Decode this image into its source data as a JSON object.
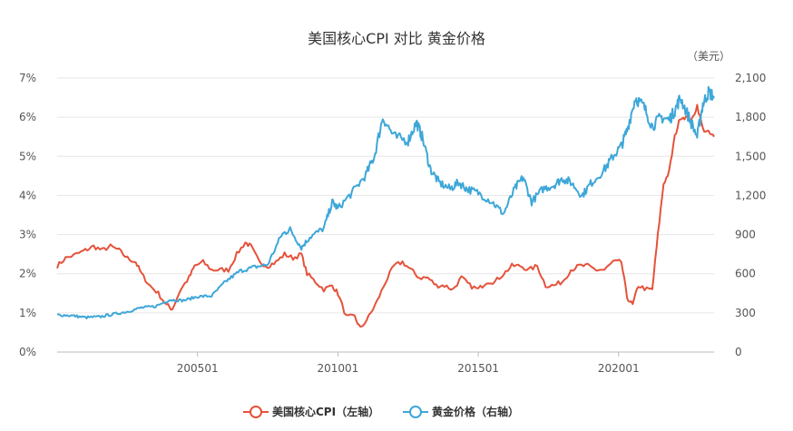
{
  "chart_data": {
    "type": "line",
    "title": "美国核心CPI 对比 黄金价格",
    "right_unit_label": "（美元）",
    "x_tick_labels": [
      "200501",
      "201001",
      "201501",
      "202001"
    ],
    "x_tick_dates": [
      2005.0,
      2010.0,
      2015.0,
      2020.0
    ],
    "xlim": [
      2000.0,
      2023.4
    ],
    "y_left": {
      "ticks": [
        "0%",
        "1%",
        "2%",
        "3%",
        "4%",
        "5%",
        "6%",
        "7%"
      ],
      "ylim": [
        0,
        7
      ]
    },
    "y_right": {
      "ticks": [
        "0",
        "300",
        "600",
        "900",
        "1,200",
        "1,500",
        "1,800",
        "2,100"
      ],
      "ylim": [
        0,
        2100
      ]
    },
    "grid": "horizontal",
    "legend_position": "bottom",
    "series": [
      {
        "name": "美国核心CPI（左轴）",
        "axis": "left",
        "color": "#e5523b",
        "points": [
          [
            2000.0,
            2.2
          ],
          [
            2000.3,
            2.4
          ],
          [
            2000.7,
            2.5
          ],
          [
            2001.0,
            2.6
          ],
          [
            2001.3,
            2.7
          ],
          [
            2001.6,
            2.6
          ],
          [
            2001.9,
            2.7
          ],
          [
            2002.2,
            2.6
          ],
          [
            2002.5,
            2.4
          ],
          [
            2002.8,
            2.3
          ],
          [
            2003.0,
            2.0
          ],
          [
            2003.3,
            1.7
          ],
          [
            2003.6,
            1.5
          ],
          [
            2003.9,
            1.2
          ],
          [
            2004.1,
            1.1
          ],
          [
            2004.4,
            1.6
          ],
          [
            2004.7,
            1.9
          ],
          [
            2004.9,
            2.2
          ],
          [
            2005.2,
            2.3
          ],
          [
            2005.5,
            2.1
          ],
          [
            2005.8,
            2.1
          ],
          [
            2006.1,
            2.1
          ],
          [
            2006.4,
            2.5
          ],
          [
            2006.7,
            2.8
          ],
          [
            2006.9,
            2.7
          ],
          [
            2007.2,
            2.3
          ],
          [
            2007.5,
            2.2
          ],
          [
            2007.8,
            2.3
          ],
          [
            2008.1,
            2.5
          ],
          [
            2008.4,
            2.4
          ],
          [
            2008.7,
            2.5
          ],
          [
            2008.9,
            2.0
          ],
          [
            2009.2,
            1.8
          ],
          [
            2009.5,
            1.6
          ],
          [
            2009.8,
            1.7
          ],
          [
            2010.0,
            1.5
          ],
          [
            2010.3,
            0.9
          ],
          [
            2010.6,
            0.9
          ],
          [
            2010.8,
            0.6
          ],
          [
            2011.1,
            0.9
          ],
          [
            2011.4,
            1.3
          ],
          [
            2011.7,
            1.8
          ],
          [
            2012.0,
            2.2
          ],
          [
            2012.3,
            2.3
          ],
          [
            2012.6,
            2.1
          ],
          [
            2012.9,
            1.9
          ],
          [
            2013.2,
            1.9
          ],
          [
            2013.5,
            1.7
          ],
          [
            2013.8,
            1.7
          ],
          [
            2014.1,
            1.6
          ],
          [
            2014.4,
            1.9
          ],
          [
            2014.7,
            1.7
          ],
          [
            2015.0,
            1.6
          ],
          [
            2015.3,
            1.8
          ],
          [
            2015.6,
            1.8
          ],
          [
            2015.9,
            2.0
          ],
          [
            2016.2,
            2.2
          ],
          [
            2016.5,
            2.2
          ],
          [
            2016.8,
            2.1
          ],
          [
            2017.1,
            2.2
          ],
          [
            2017.4,
            1.7
          ],
          [
            2017.7,
            1.7
          ],
          [
            2018.0,
            1.8
          ],
          [
            2018.3,
            2.1
          ],
          [
            2018.6,
            2.2
          ],
          [
            2018.9,
            2.2
          ],
          [
            2019.2,
            2.1
          ],
          [
            2019.5,
            2.1
          ],
          [
            2019.8,
            2.3
          ],
          [
            2020.1,
            2.3
          ],
          [
            2020.3,
            1.4
          ],
          [
            2020.5,
            1.2
          ],
          [
            2020.7,
            1.7
          ],
          [
            2021.0,
            1.6
          ],
          [
            2021.2,
            1.6
          ],
          [
            2021.4,
            3.0
          ],
          [
            2021.6,
            4.3
          ],
          [
            2021.8,
            4.6
          ],
          [
            2022.0,
            5.5
          ],
          [
            2022.2,
            6.0
          ],
          [
            2022.4,
            6.0
          ],
          [
            2022.6,
            5.9
          ],
          [
            2022.8,
            6.3
          ],
          [
            2023.0,
            5.7
          ],
          [
            2023.2,
            5.6
          ],
          [
            2023.4,
            5.5
          ]
        ]
      },
      {
        "name": "黄金价格（右轴）",
        "axis": "right",
        "color": "#3ea7d8",
        "points": [
          [
            2000.0,
            285
          ],
          [
            2000.5,
            280
          ],
          [
            2001.0,
            265
          ],
          [
            2001.5,
            270
          ],
          [
            2002.0,
            290
          ],
          [
            2002.5,
            310
          ],
          [
            2003.0,
            340
          ],
          [
            2003.5,
            350
          ],
          [
            2004.0,
            400
          ],
          [
            2004.5,
            395
          ],
          [
            2005.0,
            425
          ],
          [
            2005.5,
            430
          ],
          [
            2006.0,
            540
          ],
          [
            2006.5,
            620
          ],
          [
            2007.0,
            650
          ],
          [
            2007.5,
            670
          ],
          [
            2008.0,
            900
          ],
          [
            2008.3,
            940
          ],
          [
            2008.7,
            800
          ],
          [
            2009.0,
            880
          ],
          [
            2009.5,
            950
          ],
          [
            2009.8,
            1150
          ],
          [
            2010.0,
            1100
          ],
          [
            2010.5,
            1220
          ],
          [
            2011.0,
            1360
          ],
          [
            2011.3,
            1500
          ],
          [
            2011.6,
            1800
          ],
          [
            2012.0,
            1650
          ],
          [
            2012.5,
            1620
          ],
          [
            2012.8,
            1760
          ],
          [
            2013.0,
            1650
          ],
          [
            2013.3,
            1400
          ],
          [
            2013.6,
            1300
          ],
          [
            2014.0,
            1250
          ],
          [
            2014.3,
            1300
          ],
          [
            2014.6,
            1250
          ],
          [
            2015.0,
            1220
          ],
          [
            2015.5,
            1150
          ],
          [
            2015.9,
            1060
          ],
          [
            2016.3,
            1250
          ],
          [
            2016.6,
            1340
          ],
          [
            2016.9,
            1150
          ],
          [
            2017.3,
            1250
          ],
          [
            2017.7,
            1280
          ],
          [
            2018.0,
            1330
          ],
          [
            2018.3,
            1300
          ],
          [
            2018.7,
            1200
          ],
          [
            2019.0,
            1290
          ],
          [
            2019.5,
            1400
          ],
          [
            2019.8,
            1500
          ],
          [
            2020.1,
            1580
          ],
          [
            2020.3,
            1700
          ],
          [
            2020.6,
            1950
          ],
          [
            2020.9,
            1880
          ],
          [
            2021.2,
            1730
          ],
          [
            2021.5,
            1800
          ],
          [
            2021.8,
            1780
          ],
          [
            2022.0,
            1850
          ],
          [
            2022.2,
            1950
          ],
          [
            2022.5,
            1800
          ],
          [
            2022.8,
            1650
          ],
          [
            2023.0,
            1900
          ],
          [
            2023.2,
            1990
          ],
          [
            2023.4,
            1960
          ]
        ]
      }
    ]
  }
}
